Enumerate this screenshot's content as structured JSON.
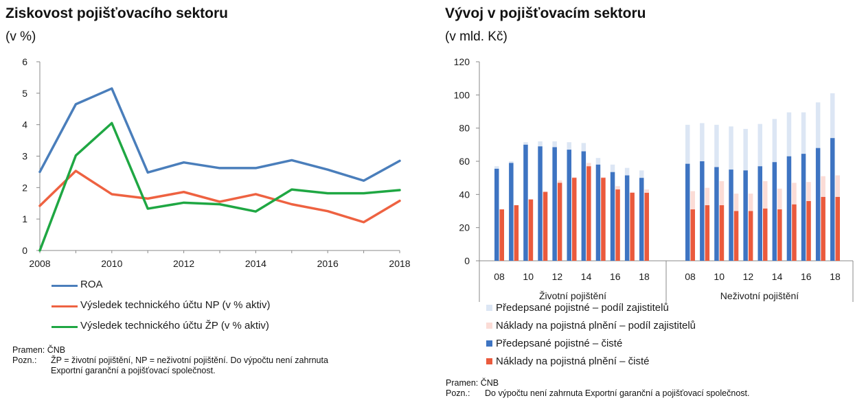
{
  "left": {
    "title": "Ziskovost pojišťovacího sektoru",
    "subtitle": "(v %)",
    "legend": [
      {
        "label": "ROA",
        "color": "#4a7ebb"
      },
      {
        "label": "Výsledek technického účtu NP (v % aktiv)",
        "color": "#ee6241"
      },
      {
        "label": "Výsledek technického účtu ŽP (v % aktiv)",
        "color": "#1fa743"
      }
    ],
    "source_label": "Pramen:",
    "source_value": "ČNB",
    "note_label": "Pozn.:",
    "note_line1": "ŽP = životní pojištění, NP = neživotní pojištění. Do výpočtu není zahrnuta",
    "note_line2": "Exportní garanční a pojišťovací společnost."
  },
  "right": {
    "title": "Vývoj v pojišťovacím sektoru",
    "subtitle": "(v mld. Kč)",
    "legend": [
      {
        "label": "Předepsané pojistné – podíl zajistitelů",
        "color": "#dce6f4"
      },
      {
        "label": "Náklady na pojistná plnění – podíl zajistitelů",
        "color": "#fbdcd6"
      },
      {
        "label": "Předepsané pojistné – čisté",
        "color": "#3e74c2"
      },
      {
        "label": "Náklady na pojistná plnění – čisté",
        "color": "#ea5a3d"
      }
    ],
    "source_label": "Pramen:",
    "source_value": "ČNB",
    "note_label": "Pozn.:",
    "note_line1": "Do výpočtu není zahrnuta Exportní garanční a pojišťovací společnost."
  },
  "chart_data": [
    {
      "type": "line",
      "title": "Ziskovost pojišťovacího sektoru",
      "subtitle": "(v %)",
      "x": [
        2008,
        2009,
        2010,
        2011,
        2012,
        2013,
        2014,
        2015,
        2016,
        2017,
        2018
      ],
      "xticks": [
        2008,
        2010,
        2012,
        2014,
        2016,
        2018
      ],
      "ylim": [
        0,
        6
      ],
      "yticks": [
        0,
        1,
        2,
        3,
        4,
        5,
        6
      ],
      "grid": false,
      "legend_position": "bottom",
      "series": [
        {
          "name": "ROA",
          "color": "#4a7ebb",
          "values": [
            2.5,
            4.65,
            5.15,
            2.48,
            2.8,
            2.62,
            2.62,
            2.87,
            2.57,
            2.22,
            2.85
          ]
        },
        {
          "name": "Výsledek technického účtu NP (v % aktiv)",
          "color": "#ee6241",
          "values": [
            1.42,
            2.53,
            1.79,
            1.65,
            1.86,
            1.55,
            1.79,
            1.47,
            1.25,
            0.9,
            1.58
          ]
        },
        {
          "name": "Výsledek technického účtu ŽP (v % aktiv)",
          "color": "#1fa743",
          "values": [
            0.0,
            3.02,
            4.05,
            1.33,
            1.52,
            1.47,
            1.24,
            1.94,
            1.82,
            1.82,
            1.92
          ]
        }
      ]
    },
    {
      "type": "bar",
      "title": "Vývoj v pojišťovacím sektoru",
      "subtitle": "(v mld. Kč)",
      "ylim": [
        0,
        120
      ],
      "yticks": [
        0,
        20,
        40,
        60,
        80,
        100,
        120
      ],
      "grid": false,
      "legend_position": "bottom",
      "groups": [
        {
          "name": "Životní pojištění",
          "categories": [
            "08",
            "09",
            "10",
            "11",
            "12",
            "13",
            "14",
            "15",
            "16",
            "17",
            "18"
          ],
          "tick_labels": [
            "08",
            "10",
            "12",
            "14",
            "16",
            "18"
          ],
          "premiums_net": [
            55.5,
            59,
            70,
            69,
            68.5,
            67,
            66,
            58,
            53.5,
            51.5,
            50
          ],
          "premiums_reinsurer": [
            1.5,
            1,
            1.5,
            3,
            3.5,
            4.5,
            5,
            4,
            4.5,
            4.5,
            4.5
          ],
          "claims_net": [
            31,
            33.5,
            37,
            41.5,
            47,
            50,
            57,
            50,
            43,
            41,
            41
          ],
          "claims_reinsurer": [
            0,
            0,
            0,
            0.5,
            1.5,
            0.5,
            2,
            0.5,
            2,
            0.5,
            2
          ]
        },
        {
          "name": "Neživotní pojištění",
          "categories": [
            "08",
            "09",
            "10",
            "11",
            "12",
            "13",
            "14",
            "15",
            "16",
            "17",
            "18"
          ],
          "tick_labels": [
            "08",
            "10",
            "12",
            "14",
            "16",
            "18"
          ],
          "premiums_net": [
            58.5,
            60,
            56.5,
            55,
            54.5,
            57,
            59.5,
            63,
            64.5,
            68,
            74
          ],
          "premiums_reinsurer": [
            23.5,
            23,
            25.5,
            26,
            25,
            25.5,
            26,
            26.5,
            25,
            27.5,
            27
          ],
          "claims_net": [
            31,
            33.5,
            33.5,
            30,
            30,
            31.5,
            31,
            34,
            36,
            38.5,
            38.5
          ],
          "claims_reinsurer": [
            11,
            10.5,
            14.5,
            10.5,
            10.5,
            16.5,
            12.5,
            13,
            11.5,
            12.5,
            13
          ]
        }
      ],
      "series": [
        {
          "name": "Předepsané pojistné – podíl zajistitelů",
          "color": "#dce6f4"
        },
        {
          "name": "Náklady na pojistná plnění – podíl zajistitelů",
          "color": "#fbdcd6"
        },
        {
          "name": "Předepsané pojistné – čisté",
          "color": "#3e74c2"
        },
        {
          "name": "Náklady na pojistná plnění – čisté",
          "color": "#ea5a3d"
        }
      ]
    }
  ]
}
